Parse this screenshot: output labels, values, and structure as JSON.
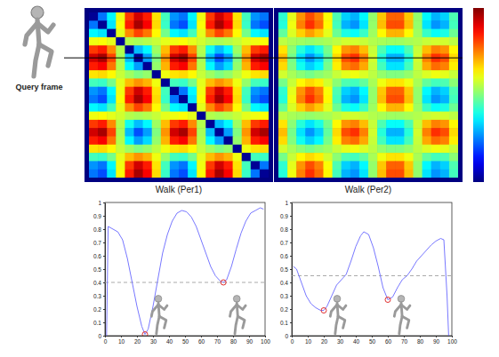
{
  "query_frame": {
    "label": "Query frame"
  },
  "chart_data": [
    {
      "type": "heatmap",
      "title": "Walk (Per1)",
      "color": "jet",
      "color_range": [
        0,
        1
      ],
      "tick_labels": false,
      "query_row": 5,
      "cells": [
        [
          0.02,
          0.24,
          0.37,
          0.61,
          0.82,
          0.92,
          0.85,
          0.65,
          0.44,
          0.27,
          0.24,
          0.37,
          0.61,
          0.82,
          0.92,
          0.85,
          0.65,
          0.44,
          0.27,
          0.24
        ],
        [
          0.24,
          0.02,
          0.35,
          0.62,
          0.85,
          0.96,
          0.88,
          0.66,
          0.43,
          0.24,
          0.2,
          0.35,
          0.62,
          0.85,
          0.96,
          0.88,
          0.66,
          0.43,
          0.24,
          0.2
        ],
        [
          0.37,
          0.35,
          0.02,
          0.6,
          0.74,
          0.81,
          0.76,
          0.63,
          0.49,
          0.37,
          0.35,
          0.44,
          0.6,
          0.74,
          0.81,
          0.76,
          0.63,
          0.49,
          0.37,
          0.35
        ],
        [
          0.61,
          0.62,
          0.6,
          0.02,
          0.55,
          0.54,
          0.55,
          0.57,
          0.6,
          0.61,
          0.62,
          0.6,
          0.58,
          0.55,
          0.54,
          0.55,
          0.57,
          0.6,
          0.61,
          0.62
        ],
        [
          0.82,
          0.85,
          0.74,
          0.55,
          0.02,
          0.31,
          0.37,
          0.53,
          0.69,
          0.82,
          0.85,
          0.74,
          0.55,
          0.39,
          0.31,
          0.37,
          0.53,
          0.69,
          0.82,
          0.85
        ],
        [
          0.92,
          0.96,
          0.81,
          0.54,
          0.31,
          0.02,
          0.28,
          0.5,
          0.73,
          0.92,
          0.96,
          0.81,
          0.54,
          0.31,
          0.2,
          0.28,
          0.5,
          0.73,
          0.92,
          0.96
        ],
        [
          0.85,
          0.88,
          0.76,
          0.55,
          0.37,
          0.28,
          0.02,
          0.52,
          0.7,
          0.85,
          0.88,
          0.76,
          0.55,
          0.37,
          0.28,
          0.34,
          0.52,
          0.7,
          0.85,
          0.88
        ],
        [
          0.65,
          0.66,
          0.63,
          0.57,
          0.53,
          0.5,
          0.52,
          0.02,
          0.61,
          0.65,
          0.66,
          0.63,
          0.57,
          0.53,
          0.5,
          0.52,
          0.56,
          0.61,
          0.65,
          0.66
        ],
        [
          0.44,
          0.43,
          0.49,
          0.6,
          0.69,
          0.73,
          0.7,
          0.61,
          0.02,
          0.44,
          0.43,
          0.49,
          0.6,
          0.69,
          0.73,
          0.7,
          0.61,
          0.52,
          0.44,
          0.43
        ],
        [
          0.27,
          0.24,
          0.37,
          0.61,
          0.82,
          0.92,
          0.85,
          0.65,
          0.44,
          0.02,
          0.24,
          0.37,
          0.61,
          0.82,
          0.92,
          0.85,
          0.65,
          0.44,
          0.27,
          0.24
        ],
        [
          0.24,
          0.2,
          0.35,
          0.62,
          0.85,
          0.96,
          0.88,
          0.66,
          0.43,
          0.24,
          0.02,
          0.35,
          0.62,
          0.85,
          0.96,
          0.88,
          0.66,
          0.43,
          0.24,
          0.2
        ],
        [
          0.37,
          0.35,
          0.44,
          0.6,
          0.74,
          0.81,
          0.76,
          0.63,
          0.49,
          0.37,
          0.35,
          0.02,
          0.6,
          0.74,
          0.81,
          0.76,
          0.63,
          0.49,
          0.37,
          0.35
        ],
        [
          0.61,
          0.62,
          0.6,
          0.58,
          0.55,
          0.54,
          0.55,
          0.57,
          0.6,
          0.61,
          0.62,
          0.6,
          0.02,
          0.55,
          0.54,
          0.55,
          0.57,
          0.6,
          0.61,
          0.62
        ],
        [
          0.82,
          0.85,
          0.74,
          0.55,
          0.39,
          0.31,
          0.37,
          0.53,
          0.69,
          0.82,
          0.85,
          0.74,
          0.55,
          0.02,
          0.31,
          0.37,
          0.53,
          0.69,
          0.82,
          0.85
        ],
        [
          0.92,
          0.96,
          0.81,
          0.54,
          0.31,
          0.2,
          0.28,
          0.5,
          0.73,
          0.92,
          0.96,
          0.81,
          0.54,
          0.31,
          0.02,
          0.28,
          0.5,
          0.73,
          0.92,
          0.96
        ],
        [
          0.85,
          0.88,
          0.76,
          0.55,
          0.37,
          0.28,
          0.34,
          0.52,
          0.7,
          0.85,
          0.88,
          0.76,
          0.55,
          0.37,
          0.28,
          0.02,
          0.52,
          0.7,
          0.85,
          0.88
        ],
        [
          0.65,
          0.66,
          0.63,
          0.57,
          0.53,
          0.5,
          0.52,
          0.56,
          0.61,
          0.65,
          0.66,
          0.63,
          0.57,
          0.53,
          0.5,
          0.52,
          0.02,
          0.61,
          0.65,
          0.66
        ],
        [
          0.44,
          0.43,
          0.49,
          0.6,
          0.69,
          0.73,
          0.7,
          0.61,
          0.52,
          0.44,
          0.43,
          0.49,
          0.6,
          0.69,
          0.73,
          0.7,
          0.61,
          0.02,
          0.44,
          0.43
        ],
        [
          0.27,
          0.24,
          0.37,
          0.61,
          0.82,
          0.92,
          0.85,
          0.65,
          0.44,
          0.27,
          0.24,
          0.37,
          0.61,
          0.82,
          0.92,
          0.85,
          0.65,
          0.44,
          0.02,
          0.24
        ],
        [
          0.24,
          0.2,
          0.35,
          0.62,
          0.85,
          0.96,
          0.88,
          0.66,
          0.43,
          0.24,
          0.2,
          0.35,
          0.62,
          0.85,
          0.96,
          0.88,
          0.66,
          0.43,
          0.24,
          0.02
        ]
      ]
    },
    {
      "type": "heatmap",
      "title": "Walk (Per2)",
      "color": "jet",
      "color_range": [
        0,
        1
      ],
      "tick_labels": false,
      "query_row": 5,
      "colorbar": {
        "range": [
          0,
          1
        ]
      },
      "cells": [
        [
          0.42,
          0.6,
          0.73,
          0.8,
          0.75,
          0.62,
          0.45,
          0.33,
          0.3,
          0.37,
          0.52,
          0.68,
          0.78,
          0.78,
          0.68,
          0.52,
          0.37,
          0.3,
          0.33,
          0.45
        ],
        [
          0.41,
          0.61,
          0.75,
          0.83,
          0.77,
          0.63,
          0.44,
          0.3,
          0.27,
          0.35,
          0.52,
          0.69,
          0.8,
          0.8,
          0.69,
          0.52,
          0.35,
          0.27,
          0.3,
          0.44
        ],
        [
          0.47,
          0.59,
          0.67,
          0.72,
          0.68,
          0.6,
          0.48,
          0.4,
          0.38,
          0.43,
          0.53,
          0.63,
          0.7,
          0.7,
          0.63,
          0.53,
          0.43,
          0.38,
          0.4,
          0.48
        ],
        [
          0.56,
          0.54,
          0.53,
          0.52,
          0.53,
          0.54,
          0.56,
          0.58,
          0.58,
          0.57,
          0.55,
          0.54,
          0.53,
          0.53,
          0.54,
          0.55,
          0.57,
          0.58,
          0.58,
          0.56
        ],
        [
          0.65,
          0.51,
          0.41,
          0.35,
          0.4,
          0.49,
          0.63,
          0.73,
          0.75,
          0.69,
          0.57,
          0.45,
          0.38,
          0.38,
          0.45,
          0.57,
          0.69,
          0.75,
          0.73,
          0.63
        ],
        [
          0.69,
          0.49,
          0.35,
          0.27,
          0.33,
          0.47,
          0.66,
          0.8,
          0.83,
          0.75,
          0.58,
          0.41,
          0.3,
          0.3,
          0.41,
          0.58,
          0.75,
          0.83,
          0.8,
          0.66
        ],
        [
          0.66,
          0.5,
          0.39,
          0.33,
          0.37,
          0.49,
          0.64,
          0.75,
          0.77,
          0.71,
          0.57,
          0.44,
          0.35,
          0.35,
          0.44,
          0.57,
          0.71,
          0.77,
          0.75,
          0.64
        ],
        [
          0.58,
          0.54,
          0.51,
          0.49,
          0.51,
          0.53,
          0.57,
          0.6,
          0.61,
          0.59,
          0.56,
          0.52,
          0.5,
          0.5,
          0.52,
          0.56,
          0.59,
          0.61,
          0.6,
          0.57
        ],
        [
          0.49,
          0.57,
          0.63,
          0.66,
          0.64,
          0.58,
          0.51,
          0.45,
          0.44,
          0.47,
          0.54,
          0.61,
          0.65,
          0.65,
          0.61,
          0.54,
          0.47,
          0.44,
          0.45,
          0.51
        ],
        [
          0.42,
          0.6,
          0.73,
          0.8,
          0.75,
          0.62,
          0.45,
          0.33,
          0.3,
          0.37,
          0.52,
          0.68,
          0.78,
          0.78,
          0.68,
          0.52,
          0.37,
          0.3,
          0.33,
          0.45
        ],
        [
          0.41,
          0.61,
          0.75,
          0.83,
          0.77,
          0.63,
          0.44,
          0.3,
          0.27,
          0.35,
          0.52,
          0.69,
          0.8,
          0.8,
          0.69,
          0.52,
          0.35,
          0.27,
          0.3,
          0.44
        ],
        [
          0.47,
          0.59,
          0.67,
          0.72,
          0.68,
          0.6,
          0.48,
          0.4,
          0.38,
          0.43,
          0.53,
          0.63,
          0.7,
          0.7,
          0.63,
          0.53,
          0.43,
          0.38,
          0.4,
          0.48
        ],
        [
          0.56,
          0.54,
          0.53,
          0.52,
          0.53,
          0.54,
          0.56,
          0.58,
          0.58,
          0.57,
          0.55,
          0.54,
          0.53,
          0.53,
          0.54,
          0.55,
          0.57,
          0.58,
          0.58,
          0.56
        ],
        [
          0.65,
          0.51,
          0.41,
          0.35,
          0.4,
          0.49,
          0.63,
          0.73,
          0.75,
          0.69,
          0.57,
          0.45,
          0.38,
          0.38,
          0.45,
          0.57,
          0.69,
          0.75,
          0.73,
          0.63
        ],
        [
          0.69,
          0.49,
          0.35,
          0.27,
          0.33,
          0.47,
          0.66,
          0.8,
          0.83,
          0.75,
          0.58,
          0.41,
          0.3,
          0.3,
          0.41,
          0.58,
          0.75,
          0.83,
          0.8,
          0.66
        ],
        [
          0.66,
          0.5,
          0.39,
          0.33,
          0.37,
          0.49,
          0.64,
          0.75,
          0.77,
          0.71,
          0.57,
          0.44,
          0.35,
          0.35,
          0.44,
          0.57,
          0.71,
          0.77,
          0.75,
          0.64
        ],
        [
          0.58,
          0.54,
          0.51,
          0.49,
          0.51,
          0.53,
          0.57,
          0.6,
          0.61,
          0.59,
          0.56,
          0.52,
          0.5,
          0.5,
          0.52,
          0.56,
          0.59,
          0.61,
          0.6,
          0.57
        ],
        [
          0.49,
          0.57,
          0.63,
          0.66,
          0.64,
          0.58,
          0.51,
          0.45,
          0.44,
          0.47,
          0.54,
          0.61,
          0.65,
          0.65,
          0.61,
          0.54,
          0.47,
          0.44,
          0.45,
          0.51
        ],
        [
          0.42,
          0.6,
          0.73,
          0.8,
          0.75,
          0.62,
          0.45,
          0.33,
          0.3,
          0.37,
          0.52,
          0.68,
          0.78,
          0.78,
          0.68,
          0.52,
          0.37,
          0.3,
          0.33,
          0.45
        ],
        [
          0.41,
          0.61,
          0.75,
          0.83,
          0.77,
          0.63,
          0.44,
          0.3,
          0.27,
          0.35,
          0.52,
          0.69,
          0.8,
          0.8,
          0.69,
          0.52,
          0.35,
          0.27,
          0.3,
          0.44
        ]
      ]
    },
    {
      "type": "line",
      "color": "#7878ff",
      "x": [
        1,
        2,
        5,
        8,
        11,
        14,
        17,
        20,
        23,
        25,
        27,
        30,
        33,
        36,
        39,
        42,
        45,
        48,
        51,
        54,
        57,
        60,
        63,
        66,
        69,
        72,
        74,
        76,
        79,
        82,
        85,
        88,
        91,
        94,
        97,
        99
      ],
      "values": [
        0,
        0.82,
        0.8,
        0.78,
        0.72,
        0.58,
        0.4,
        0.22,
        0.07,
        0.01,
        0.05,
        0.22,
        0.42,
        0.62,
        0.76,
        0.86,
        0.92,
        0.94,
        0.93,
        0.89,
        0.82,
        0.72,
        0.62,
        0.52,
        0.45,
        0.41,
        0.4,
        0.42,
        0.52,
        0.65,
        0.77,
        0.86,
        0.92,
        0.94,
        0.96,
        0.95
      ],
      "xlim": [
        0,
        100
      ],
      "xticks": [
        0,
        10,
        20,
        30,
        40,
        50,
        60,
        70,
        80,
        90,
        100
      ],
      "ylim": [
        0,
        1
      ],
      "yticks": [
        0,
        0.1,
        0.2,
        0.3,
        0.4,
        0.5,
        0.6,
        0.7,
        0.8,
        0.9,
        1
      ],
      "threshold": {
        "value": 0.4,
        "line_style": "dashed",
        "color": "#a0a0a0"
      },
      "minima": {
        "x": [
          25,
          74
        ],
        "y": [
          0.01,
          0.4
        ],
        "color": "#e03030",
        "marker": "circle"
      }
    },
    {
      "type": "line",
      "color": "#7878ff",
      "x": [
        1,
        3,
        6,
        9,
        12,
        15,
        18,
        20,
        22,
        25,
        28,
        31,
        34,
        37,
        40,
        43,
        45,
        48,
        51,
        54,
        57,
        60,
        63,
        66,
        69,
        72,
        75,
        78,
        81,
        84,
        87,
        90,
        93,
        95,
        97,
        98
      ],
      "values": [
        0.52,
        0.5,
        0.4,
        0.3,
        0.24,
        0.21,
        0.19,
        0.19,
        0.22,
        0.3,
        0.38,
        0.42,
        0.46,
        0.56,
        0.67,
        0.75,
        0.78,
        0.76,
        0.66,
        0.52,
        0.36,
        0.27,
        0.29,
        0.36,
        0.42,
        0.45,
        0.5,
        0.56,
        0.6,
        0.64,
        0.68,
        0.71,
        0.73,
        0.72,
        0.3,
        0
      ],
      "xlim": [
        0,
        100
      ],
      "xticks": [
        0,
        10,
        20,
        30,
        40,
        50,
        60,
        70,
        80,
        90,
        100
      ],
      "ylim": [
        0,
        1
      ],
      "yticks": [
        0,
        0.1,
        0.2,
        0.3,
        0.4,
        0.5,
        0.6,
        0.7,
        0.8,
        0.9,
        1
      ],
      "threshold": {
        "value": 0.45,
        "line_style": "dashed",
        "color": "#a0a0a0"
      },
      "minima": {
        "x": [
          20,
          60
        ],
        "y": [
          0.19,
          0.27
        ],
        "color": "#e03030",
        "marker": "circle"
      }
    }
  ]
}
